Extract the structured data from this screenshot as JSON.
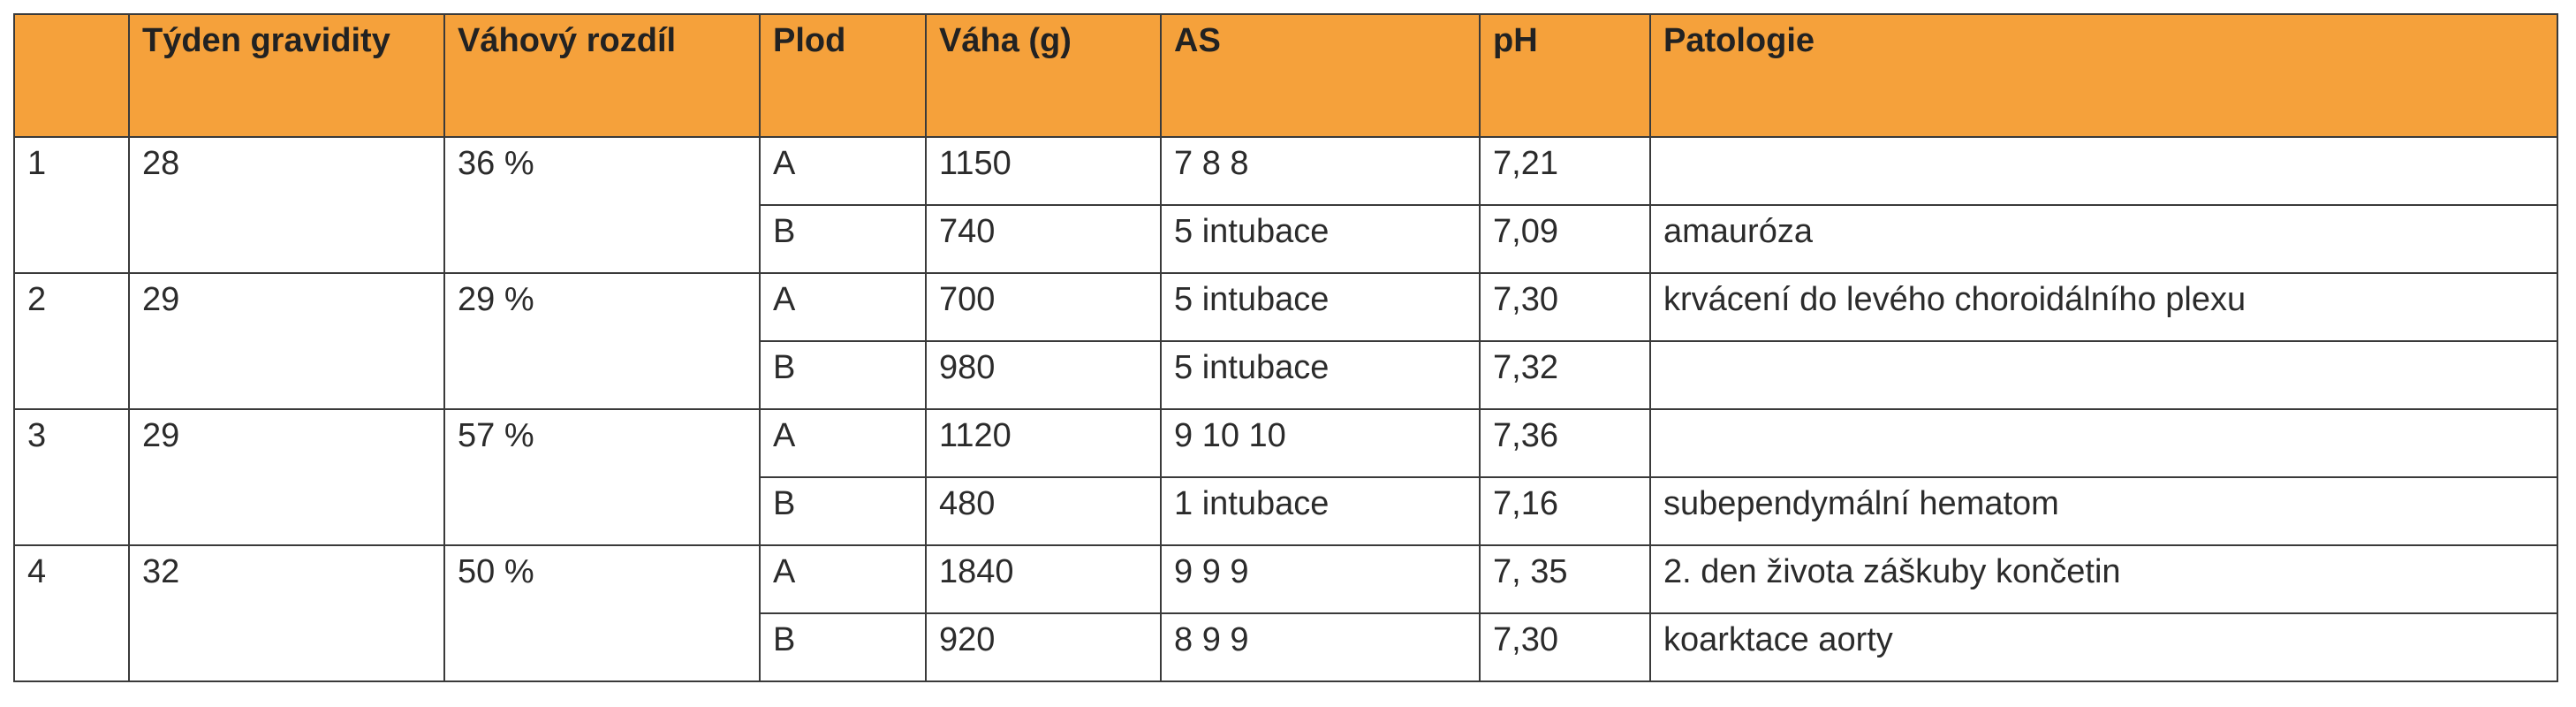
{
  "table": {
    "header": [
      "",
      "Týden gravidity",
      "Váhový rozdíl",
      "Plod",
      "Váha (g)",
      "AS",
      "pH",
      "Patologie"
    ],
    "groups": [
      {
        "number": "1",
        "week": "28",
        "difference": "36 %",
        "fetuses": [
          {
            "plod": "A",
            "weight": "1150",
            "as": "7 8 8",
            "ph": "7,21"
          },
          {
            "plod": "B",
            "weight": "740",
            "as": "5 intubace",
            "ph": "7,09",
            "pathology": "amauróza"
          }
        ]
      },
      {
        "number": "2",
        "week": "29",
        "difference": "29 %",
        "fetuses": [
          {
            "plod": "A",
            "weight": "700",
            "as": "5 intubace",
            "ph": "7,30",
            "pathology": "krvácení do levého choroidálního plexu"
          },
          {
            "plod": "B",
            "weight": "980",
            "as": "5 intubace",
            "ph": "7,32"
          }
        ]
      },
      {
        "number": "3",
        "week": "29",
        "difference": "57 %",
        "fetuses": [
          {
            "plod": "A",
            "weight": "1120",
            "as": "9 10 10",
            "ph": "7,36"
          },
          {
            "plod": "B",
            "weight": "480",
            "as": "1 intubace",
            "ph": "7,16",
            "pathology": "subependymální hematom"
          }
        ]
      },
      {
        "number": "4",
        "week": "32",
        "difference": "50 %",
        "fetuses": [
          {
            "plod": "A",
            "weight": "1840",
            "as": "9 9 9",
            "ph": "7, 35",
            "pathology": "2. den života záškuby končetin"
          },
          {
            "plod": "B",
            "weight": "920",
            "as": "8 9 9",
            "ph": "7,30",
            "pathology": "koarktace aorty"
          }
        ]
      }
    ]
  }
}
